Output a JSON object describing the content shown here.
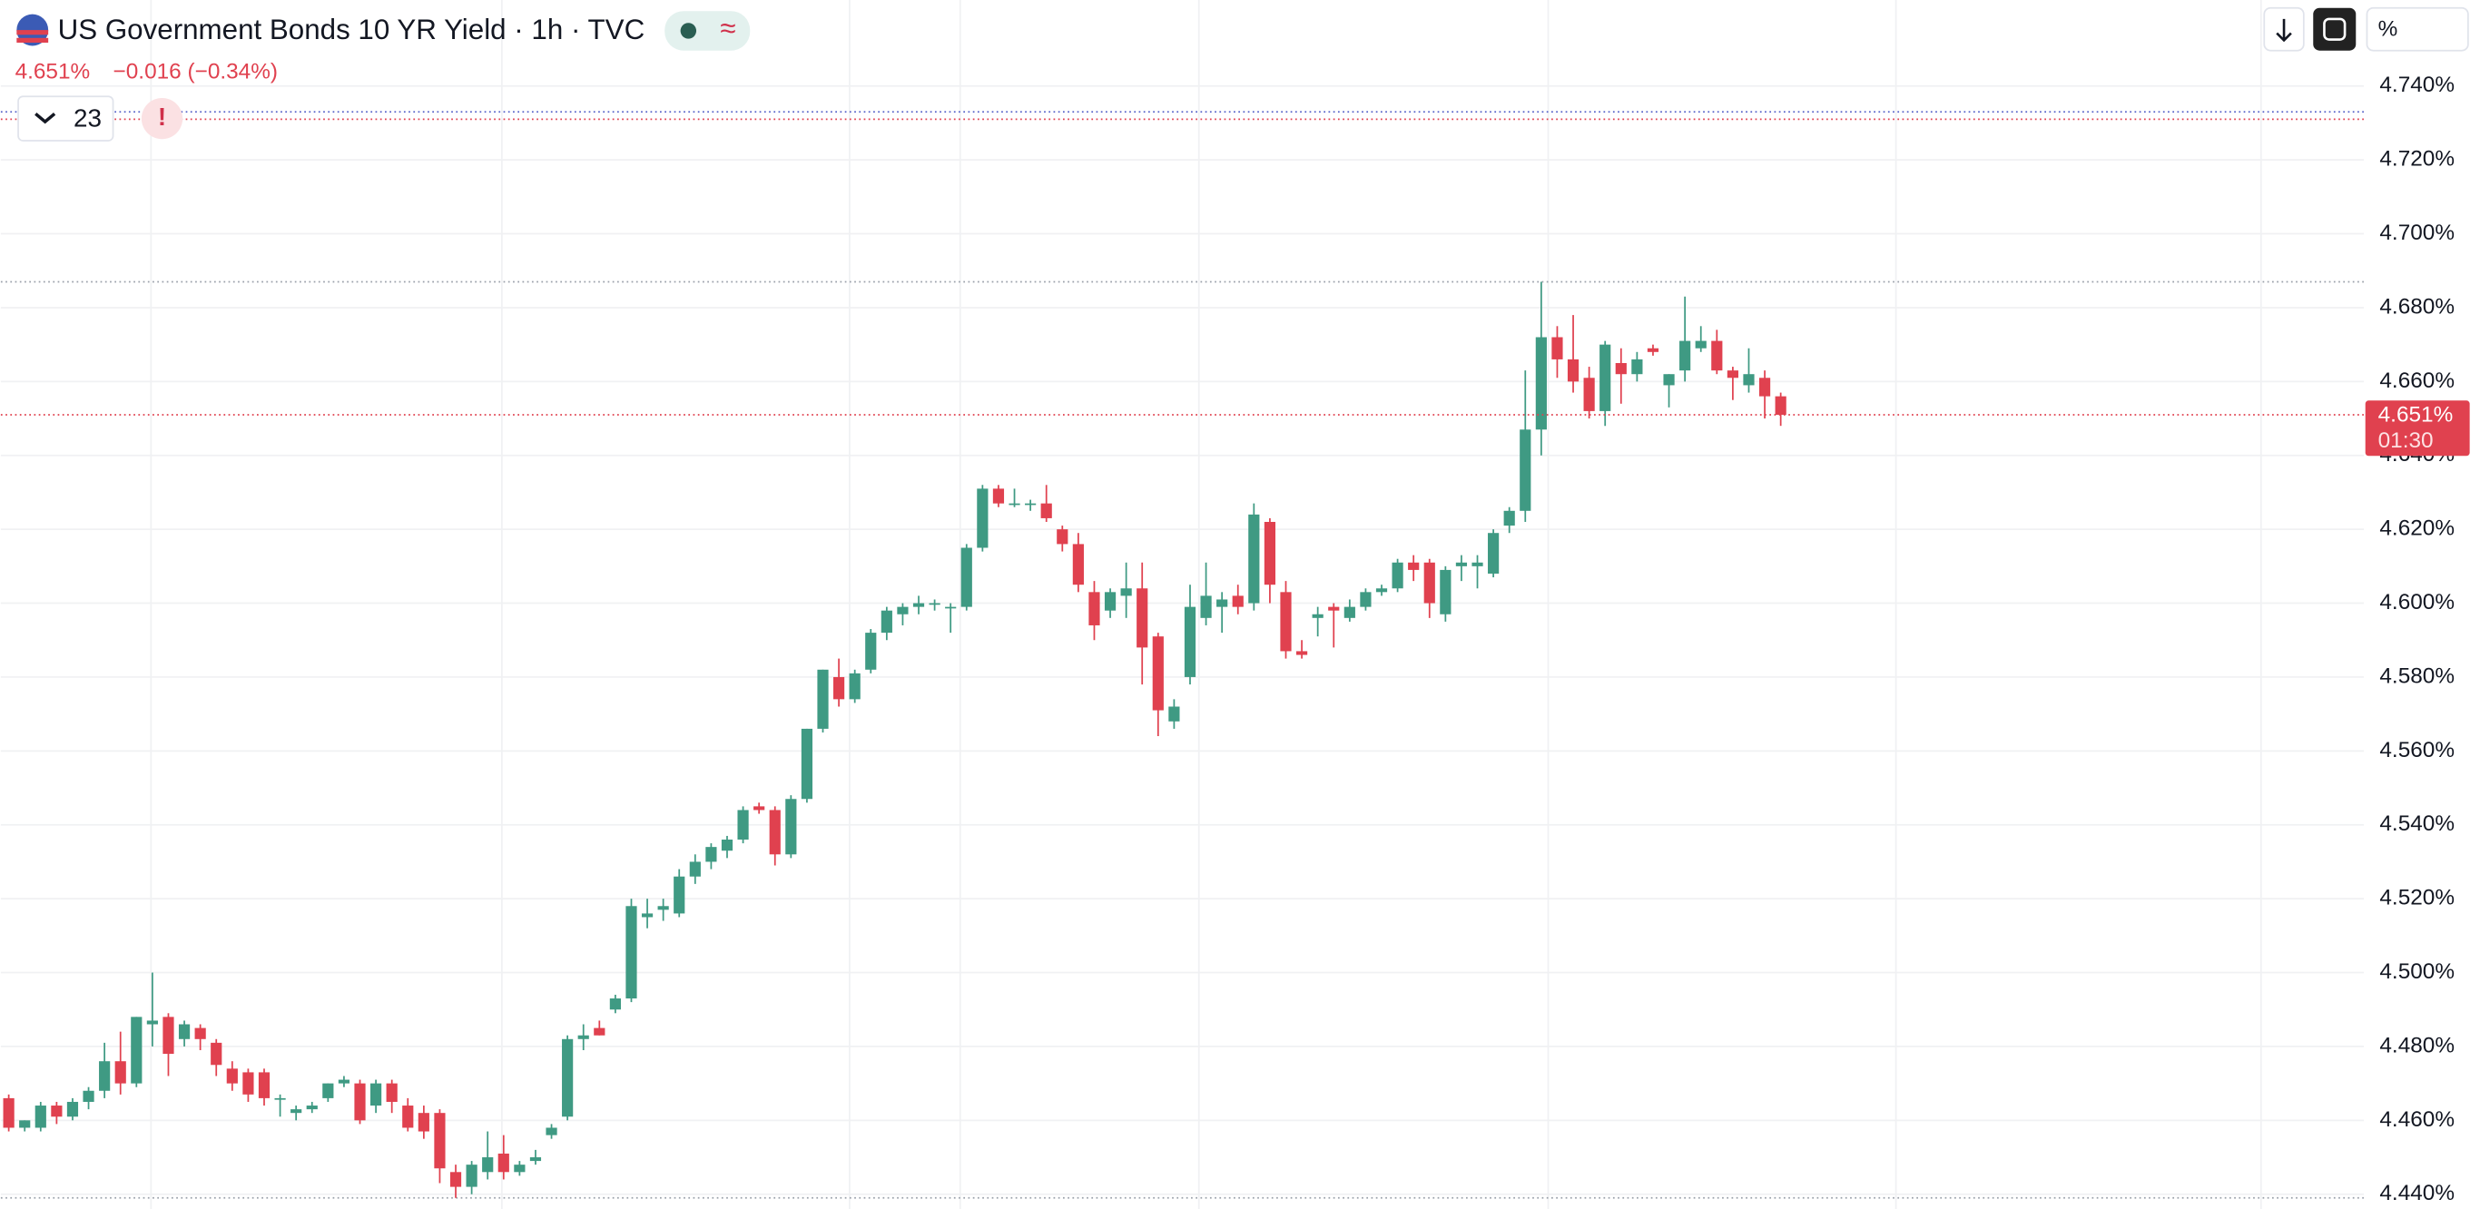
{
  "chart_data": {
    "type": "candlestick",
    "title": "US Government Bonds 10 YR Yield · 1h · TVC",
    "price": "4.651%",
    "change": "−0.016 (−0.34%)",
    "indicators_count": 23,
    "scale_mode": "%",
    "up_color": "#3f9a83",
    "down_color": "#e0414f",
    "ylim": [
      4.436,
      4.762
    ],
    "yticks": [
      {
        "value": 4.44,
        "label": "4.440%"
      },
      {
        "value": 4.46,
        "label": "4.460%"
      },
      {
        "value": 4.48,
        "label": "4.480%"
      },
      {
        "value": 4.5,
        "label": "4.500%"
      },
      {
        "value": 4.52,
        "label": "4.520%"
      },
      {
        "value": 4.54,
        "label": "4.540%"
      },
      {
        "value": 4.56,
        "label": "4.560%"
      },
      {
        "value": 4.58,
        "label": "4.580%"
      },
      {
        "value": 4.6,
        "label": "4.600%"
      },
      {
        "value": 4.62,
        "label": "4.620%"
      },
      {
        "value": 4.64,
        "label": "4.640%"
      },
      {
        "value": 4.66,
        "label": "4.660%"
      },
      {
        "value": 4.68,
        "label": "4.680%"
      },
      {
        "value": 4.7,
        "label": "4.700%"
      },
      {
        "value": 4.72,
        "label": "4.720%"
      },
      {
        "value": 4.74,
        "label": "4.740%"
      }
    ],
    "grid": true,
    "last_price": {
      "value": 4.651,
      "label": "4.651%"
    },
    "countdown": "01:30",
    "price_lines": [
      {
        "value": 4.733,
        "color": "#5561c8"
      },
      {
        "value": 4.731,
        "color": "#e0414f"
      },
      {
        "value": 4.687,
        "color": "#9aa0aa"
      },
      {
        "value": 4.439,
        "color": "#9aa0aa"
      }
    ],
    "candles": [
      [
        4.466,
        4.467,
        4.457,
        4.458
      ],
      [
        4.458,
        4.46,
        4.457,
        4.46
      ],
      [
        4.458,
        4.465,
        4.457,
        4.464
      ],
      [
        4.464,
        4.465,
        4.459,
        4.461
      ],
      [
        4.461,
        4.466,
        4.46,
        4.465
      ],
      [
        4.465,
        4.469,
        4.463,
        4.468
      ],
      [
        4.468,
        4.481,
        4.466,
        4.476
      ],
      [
        4.476,
        4.484,
        4.467,
        4.47
      ],
      [
        4.47,
        4.488,
        4.469,
        4.488
      ],
      [
        4.486,
        4.5,
        4.48,
        4.487
      ],
      [
        4.488,
        4.489,
        4.472,
        4.478
      ],
      [
        4.482,
        4.487,
        4.48,
        4.486
      ],
      [
        4.485,
        4.486,
        4.479,
        4.482
      ],
      [
        4.481,
        4.482,
        4.472,
        4.475
      ],
      [
        4.474,
        4.476,
        4.468,
        4.47
      ],
      [
        4.473,
        4.474,
        4.465,
        4.467
      ],
      [
        4.473,
        4.474,
        4.464,
        4.466
      ],
      [
        4.466,
        4.467,
        4.461,
        4.466
      ],
      [
        4.462,
        4.464,
        4.46,
        4.463
      ],
      [
        4.463,
        4.465,
        4.462,
        4.464
      ],
      [
        4.466,
        4.47,
        4.465,
        4.47
      ],
      [
        4.47,
        4.472,
        4.469,
        4.471
      ],
      [
        4.47,
        4.471,
        4.459,
        4.46
      ],
      [
        4.464,
        4.471,
        4.462,
        4.47
      ],
      [
        4.47,
        4.471,
        4.462,
        4.465
      ],
      [
        4.464,
        4.466,
        4.457,
        4.458
      ],
      [
        4.462,
        4.464,
        4.455,
        4.457
      ],
      [
        4.462,
        4.463,
        4.443,
        4.447
      ],
      [
        4.446,
        4.448,
        4.439,
        4.442
      ],
      [
        4.442,
        4.449,
        4.44,
        4.448
      ],
      [
        4.446,
        4.457,
        4.444,
        4.45
      ],
      [
        4.451,
        4.456,
        4.444,
        4.446
      ],
      [
        4.446,
        4.449,
        4.445,
        4.448
      ],
      [
        4.449,
        4.452,
        4.448,
        4.45
      ],
      [
        4.456,
        4.459,
        4.455,
        4.458
      ],
      [
        4.461,
        4.483,
        4.46,
        4.482
      ],
      [
        4.482,
        4.486,
        4.479,
        4.483
      ],
      [
        4.485,
        4.487,
        4.483,
        4.483
      ],
      [
        4.49,
        4.494,
        4.489,
        4.493
      ],
      [
        4.493,
        4.52,
        4.492,
        4.518
      ],
      [
        4.515,
        4.52,
        4.512,
        4.516
      ],
      [
        4.517,
        4.52,
        4.514,
        4.518
      ],
      [
        4.516,
        4.528,
        4.515,
        4.526
      ],
      [
        4.526,
        4.532,
        4.524,
        4.53
      ],
      [
        4.53,
        4.535,
        4.528,
        4.534
      ],
      [
        4.533,
        4.537,
        4.531,
        4.536
      ],
      [
        4.536,
        4.545,
        4.535,
        4.544
      ],
      [
        4.545,
        4.546,
        4.543,
        4.544
      ],
      [
        4.544,
        4.545,
        4.529,
        4.532
      ],
      [
        4.532,
        4.548,
        4.531,
        4.547
      ],
      [
        4.547,
        4.566,
        4.546,
        4.566
      ],
      [
        4.566,
        4.582,
        4.565,
        4.582
      ],
      [
        4.58,
        4.585,
        4.572,
        4.574
      ],
      [
        4.574,
        4.582,
        4.573,
        4.581
      ],
      [
        4.582,
        4.593,
        4.581,
        4.592
      ],
      [
        4.592,
        4.599,
        4.59,
        4.598
      ],
      [
        4.597,
        4.6,
        4.594,
        4.599
      ],
      [
        4.599,
        4.602,
        4.597,
        4.6
      ],
      [
        4.6,
        4.601,
        4.598,
        4.6
      ],
      [
        4.599,
        4.6,
        4.592,
        4.599
      ],
      [
        4.599,
        4.616,
        4.598,
        4.615
      ],
      [
        4.615,
        4.632,
        4.614,
        4.631
      ],
      [
        4.631,
        4.632,
        4.626,
        4.627
      ],
      [
        4.627,
        4.631,
        4.626,
        4.627
      ],
      [
        4.627,
        4.628,
        4.625,
        4.627
      ],
      [
        4.627,
        4.632,
        4.622,
        4.623
      ],
      [
        4.62,
        4.621,
        4.614,
        4.616
      ],
      [
        4.616,
        4.619,
        4.603,
        4.605
      ],
      [
        4.603,
        4.606,
        4.59,
        4.594
      ],
      [
        4.598,
        4.604,
        4.596,
        4.603
      ],
      [
        4.602,
        4.611,
        4.596,
        4.604
      ],
      [
        4.604,
        4.611,
        4.578,
        4.588
      ],
      [
        4.591,
        4.592,
        4.564,
        4.571
      ],
      [
        4.568,
        4.574,
        4.566,
        4.572
      ],
      [
        4.58,
        4.605,
        4.578,
        4.599
      ],
      [
        4.596,
        4.611,
        4.594,
        4.602
      ],
      [
        4.599,
        4.603,
        4.592,
        4.601
      ],
      [
        4.602,
        4.605,
        4.597,
        4.599
      ],
      [
        4.6,
        4.627,
        4.598,
        4.624
      ],
      [
        4.622,
        4.623,
        4.6,
        4.605
      ],
      [
        4.603,
        4.606,
        4.585,
        4.587
      ],
      [
        4.587,
        4.59,
        4.585,
        4.586
      ],
      [
        4.596,
        4.599,
        4.591,
        4.597
      ],
      [
        4.599,
        4.6,
        4.588,
        4.598
      ],
      [
        4.596,
        4.601,
        4.595,
        4.599
      ],
      [
        4.599,
        4.604,
        4.598,
        4.603
      ],
      [
        4.603,
        4.605,
        4.602,
        4.604
      ],
      [
        4.604,
        4.612,
        4.603,
        4.611
      ],
      [
        4.611,
        4.613,
        4.606,
        4.609
      ],
      [
        4.611,
        4.612,
        4.596,
        4.6
      ],
      [
        4.597,
        4.61,
        4.595,
        4.609
      ],
      [
        4.61,
        4.613,
        4.606,
        4.611
      ],
      [
        4.61,
        4.613,
        4.604,
        4.611
      ],
      [
        4.608,
        4.62,
        4.607,
        4.619
      ],
      [
        4.621,
        4.626,
        4.619,
        4.625
      ],
      [
        4.625,
        4.663,
        4.622,
        4.647
      ],
      [
        4.647,
        4.687,
        4.64,
        4.672
      ],
      [
        4.672,
        4.675,
        4.661,
        4.666
      ],
      [
        4.666,
        4.678,
        4.657,
        4.66
      ],
      [
        4.661,
        4.664,
        4.65,
        4.652
      ],
      [
        4.652,
        4.671,
        4.648,
        4.67
      ],
      [
        4.665,
        4.669,
        4.654,
        4.662
      ],
      [
        4.662,
        4.668,
        4.66,
        4.666
      ],
      [
        4.669,
        4.67,
        4.667,
        4.668
      ],
      [
        4.659,
        4.662,
        4.653,
        4.662
      ],
      [
        4.663,
        4.683,
        4.66,
        4.671
      ],
      [
        4.669,
        4.675,
        4.668,
        4.671
      ],
      [
        4.671,
        4.674,
        4.662,
        4.663
      ],
      [
        4.663,
        4.664,
        4.655,
        4.661
      ],
      [
        4.659,
        4.669,
        4.657,
        4.662
      ],
      [
        4.661,
        4.663,
        4.65,
        4.656
      ],
      [
        4.656,
        4.657,
        4.648,
        4.651
      ]
    ]
  }
}
